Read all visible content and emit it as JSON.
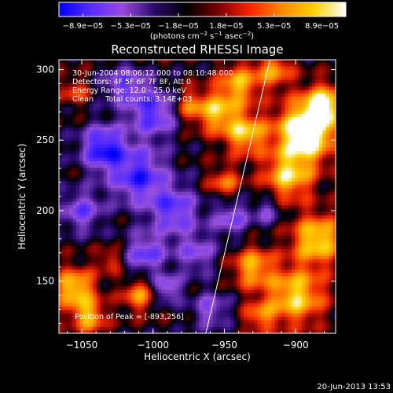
{
  "chart_data": {
    "type": "heatmap",
    "title": "Reconstructed RHESSI Image",
    "xlabel": "Heliocentric X (arcsec)",
    "ylabel": "Heliocentric Y (arcsec)",
    "xlim": [
      -1066,
      -872
    ],
    "ylim": [
      113,
      307
    ],
    "x_ticks": [
      {
        "value": -1050,
        "label": "−1050"
      },
      {
        "value": -1000,
        "label": "−1000"
      },
      {
        "value": -950,
        "label": "−950"
      },
      {
        "value": -900,
        "label": "−900"
      }
    ],
    "y_ticks": [
      {
        "value": 150,
        "label": "150"
      },
      {
        "value": 200,
        "label": "200"
      },
      {
        "value": 250,
        "label": "250"
      },
      {
        "value": 300,
        "label": "300"
      }
    ],
    "colorbar": {
      "range": [
        -8.9e-05,
        8.9e-05
      ],
      "tick_labels": [
        "−8.9e−05",
        "−5.3e−05",
        "−1.8e−05",
        "1.8e−05",
        "5.3e−05",
        "8.9e−05"
      ],
      "colors": [
        "#0000ff",
        "#5a2cff",
        "#9a4adf",
        "#2a0a6a",
        "#000000",
        "#7a0000",
        "#ff2200",
        "#ff8a00",
        "#ffd000",
        "#ffffff"
      ]
    },
    "units_prefix": "(photons cm",
    "units_exp1": "−2",
    "units_mid": " s",
    "units_exp2": "−1",
    "units_mid2": " asec",
    "units_exp3": "−2",
    "units_suffix": ")",
    "annotations": [
      "30-Jun-2004 08:06:12.000 to 08:10:48.000",
      "Detectors: 4F 5F 6F 7F 8F, Att 0",
      "Energy Range: 12.0 - 25.0 keV",
      "Clean     Total counts: 3.14E+03"
    ],
    "peak_label": "Position of Peak = [-893,256]",
    "peak": {
      "x": -893,
      "y": 256
    },
    "limb_line": [
      {
        "x": -963,
        "y": 113
      },
      {
        "x": -918,
        "y": 307
      }
    ],
    "timestamp": "20-Jun-2013 13:53"
  }
}
